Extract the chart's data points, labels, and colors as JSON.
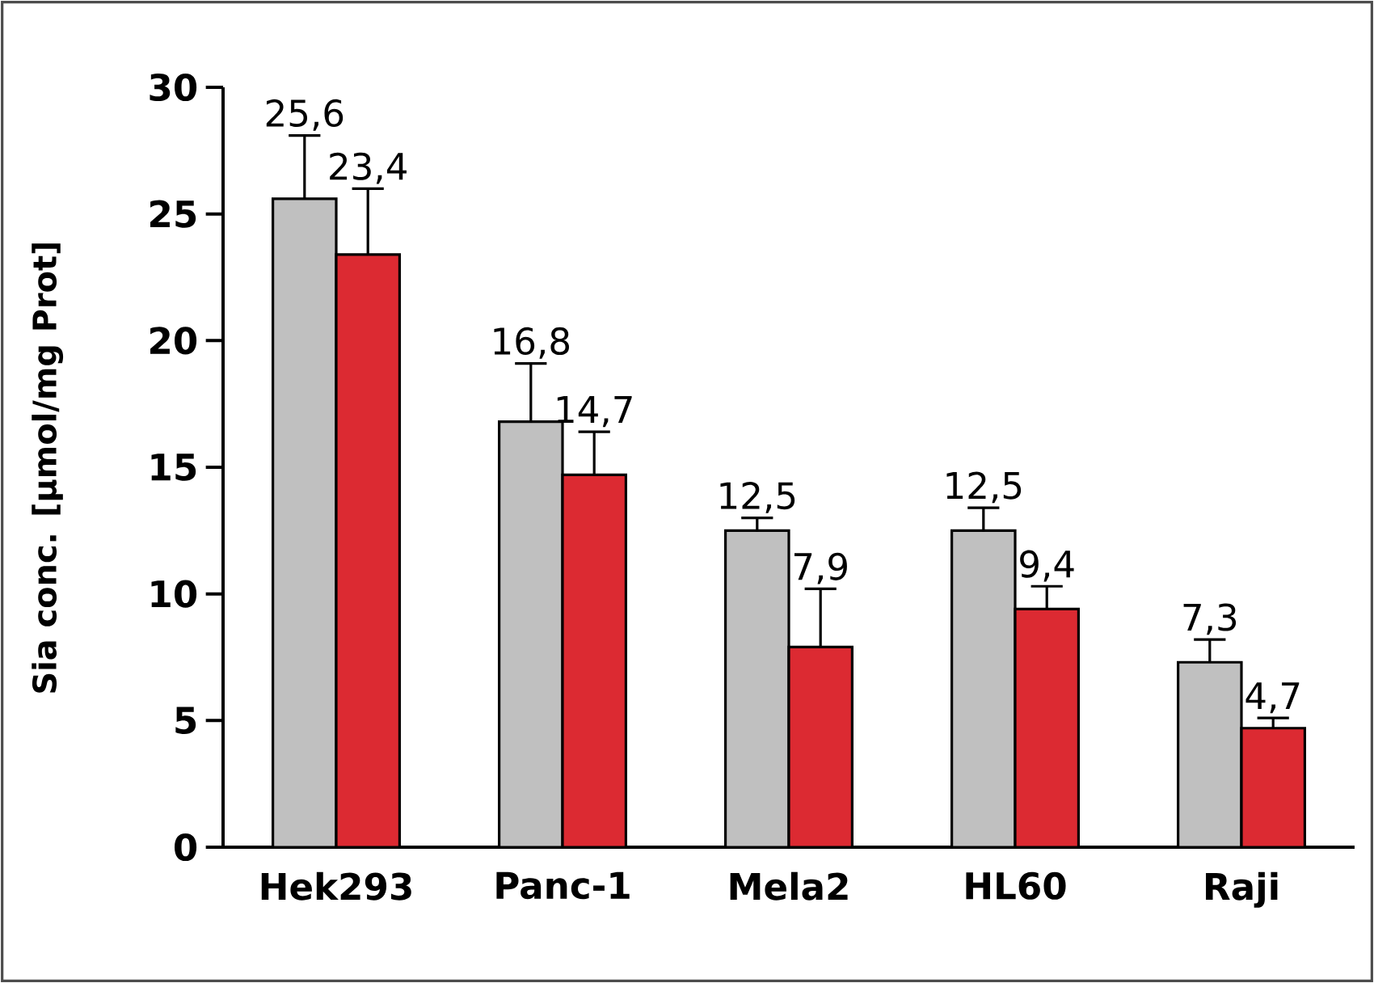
{
  "chart_data": {
    "type": "bar",
    "ylabel": "Sia conc. [µmol/mg Prot]",
    "categories": [
      "Hek293",
      "Panc-1",
      "Mela2",
      "HL60",
      "Raji"
    ],
    "series": [
      {
        "color": "#c0c0c0",
        "values": [
          25.6,
          16.8,
          12.5,
          12.5,
          7.3
        ],
        "value_labels": [
          "25,6",
          "16,8",
          "12,5",
          "12,5",
          "7,3"
        ],
        "errors": [
          [
            25.6,
            28.1
          ],
          [
            16.8,
            19.1
          ],
          [
            12.5,
            13.0
          ],
          [
            12.5,
            13.4
          ],
          [
            7.3,
            8.2
          ]
        ]
      },
      {
        "color": "#dc2a32",
        "values": [
          23.4,
          14.7,
          7.9,
          9.4,
          4.7
        ],
        "value_labels": [
          "23,4",
          "14,7",
          "7,9",
          "9,4",
          "4,7"
        ],
        "errors": [
          [
            23.4,
            26.0
          ],
          [
            14.7,
            16.4
          ],
          [
            7.9,
            10.2
          ],
          [
            9.4,
            10.3
          ],
          [
            4.7,
            5.1
          ]
        ]
      }
    ],
    "ylim": [
      0,
      30
    ],
    "yticks": [
      0,
      5,
      10,
      15,
      20,
      25,
      30
    ]
  }
}
